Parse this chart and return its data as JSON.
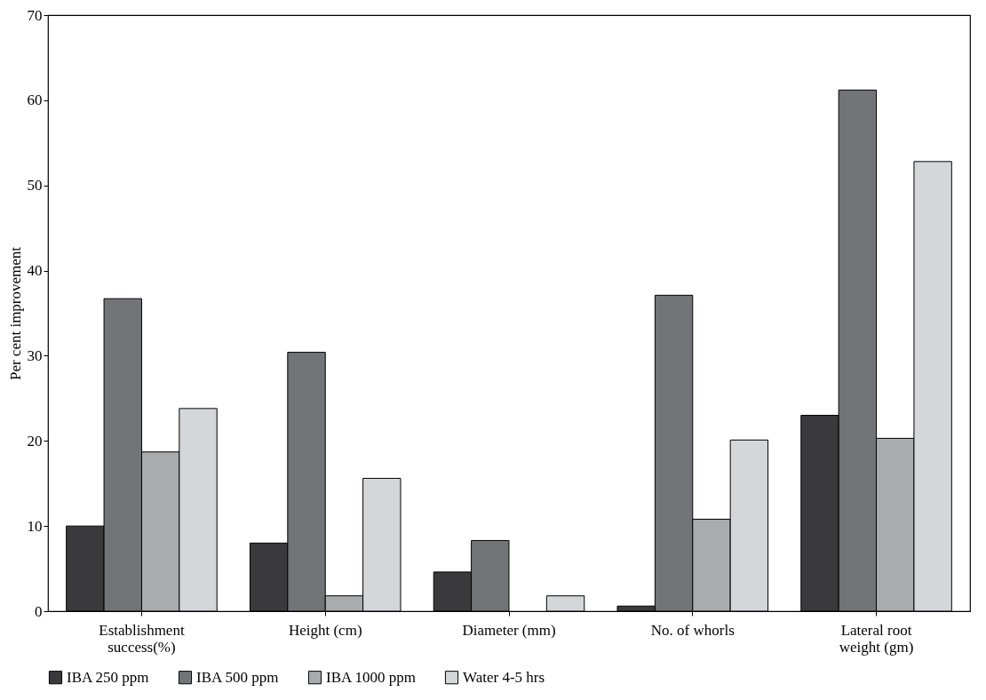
{
  "chart_data": {
    "type": "bar",
    "ylabel": "Per cent improvement",
    "categories": [
      "Establishment\nsuccess(%)",
      "Height (cm)",
      "Diameter (mm)",
      "No. of whorls",
      "Lateral root\nweight (gm)"
    ],
    "series": [
      {
        "name": "IBA 250 ppm",
        "color": "#3a3a3c",
        "values": [
          10,
          8,
          4.6,
          0.6,
          23
        ]
      },
      {
        "name": "IBA 500 ppm",
        "color": "#737477",
        "values": [
          36.7,
          30.4,
          8.3,
          37.1,
          61.2
        ]
      },
      {
        "name": "IBA 1000 ppm",
        "color": "#a9abae",
        "values": [
          18.7,
          1.8,
          null,
          10.8,
          20.3
        ]
      },
      {
        "name": "Water 4-5 hrs",
        "color": "#d5d6da",
        "values": [
          23.8,
          15.6,
          1.8,
          20.1,
          52.8
        ]
      }
    ],
    "ylim": [
      0,
      70
    ],
    "yticks": [
      0,
      10,
      20,
      30,
      40,
      50,
      60,
      70
    ],
    "grid": false,
    "legend": "bottom"
  }
}
